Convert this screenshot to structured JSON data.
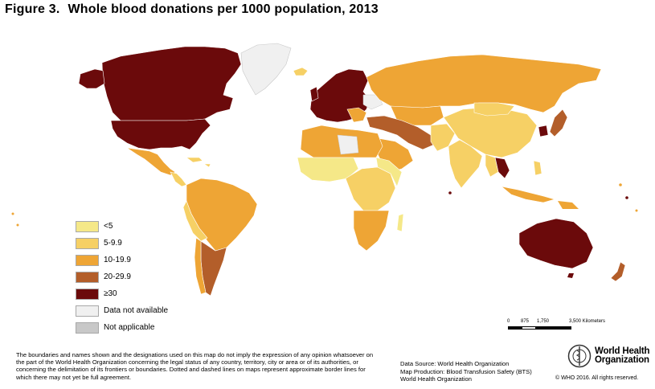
{
  "figure": {
    "label": "Figure 3.",
    "title": "Whole blood donations per 1000 population, 2013"
  },
  "colors": {
    "lt5": "#f5e888",
    "c5_9": "#f6d065",
    "c10_19": "#eea535",
    "c20_29": "#b35e2a",
    "c30": "#6b0a0b",
    "na": "#f0f0f0",
    "notapp": "#c8c8c8",
    "ocean": "#ffffff",
    "border": "#ffffff"
  },
  "legend": {
    "items": [
      {
        "label": "<5",
        "color": "#f5e888"
      },
      {
        "label": "5-9.9",
        "color": "#f6d065"
      },
      {
        "label": "10-19.9",
        "color": "#eea535"
      },
      {
        "label": "20-29.9",
        "color": "#b35e2a"
      },
      {
        "label": "≥30",
        "color": "#6b0a0b"
      },
      {
        "label": "Data not available",
        "color": "#f0f0f0"
      },
      {
        "label": "Not applicable",
        "color": "#c8c8c8"
      }
    ]
  },
  "scale": {
    "ticks": [
      "0",
      "875",
      "1,750",
      "3,500 Kilometers"
    ]
  },
  "disclaimer": "The boundaries and names shown and the designations used on this map do not imply the expression of any opinion whatsoever on the part of the World Health Organization concerning the legal status of any country, territory, city or area or of its authorities, or concerning the delimitation of its frontiers or boundaries. Dotted and dashed lines on maps represent approximate border lines for which there may not yet be full agreement.",
  "credits": {
    "source": "Data Source: World Health Organization",
    "production": "Map Production: Blood Transfusion Safety (BTS)",
    "org": "World Health Organization"
  },
  "who": {
    "line1": "World Health",
    "line2": "Organization"
  },
  "copyright": "© WHO 2016. All rights reserved."
}
